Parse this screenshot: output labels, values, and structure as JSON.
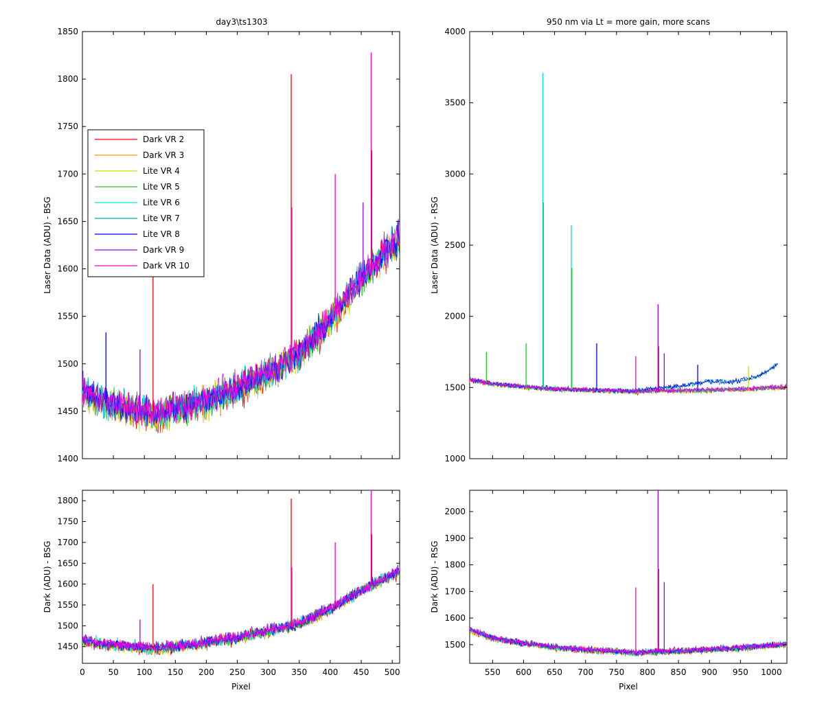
{
  "figure": {
    "background": "#ffffff"
  },
  "series_styles": [
    {
      "name": "Dark VR 2",
      "color": "#ff0000"
    },
    {
      "name": "Dark VR 3",
      "color": "#ff9900"
    },
    {
      "name": "Lite VR 4",
      "color": "#ccdd00"
    },
    {
      "name": "Lite VR 5",
      "color": "#22cc22"
    },
    {
      "name": "Lite VR 6",
      "color": "#00e5e5"
    },
    {
      "name": "Lite VR 7",
      "color": "#00aaaa"
    },
    {
      "name": "Lite VR 8",
      "color": "#0000ff"
    },
    {
      "name": "Dark VR 9",
      "color": "#9900ff"
    },
    {
      "name": "Dark VR 10",
      "color": "#ff00cc"
    }
  ],
  "chart_data": [
    {
      "id": "top-left",
      "type": "line",
      "title": "day3\\ts1303",
      "xlabel": "",
      "ylabel": "Laser Data (ADU) - BSG",
      "xlim": [
        0,
        512
      ],
      "ylim": [
        1400,
        1850
      ],
      "xticks": [
        0,
        50,
        100,
        150,
        200,
        250,
        300,
        350,
        400,
        450,
        500
      ],
      "xtick_labels_visible": false,
      "yticks": [
        1400,
        1450,
        1500,
        1550,
        1600,
        1650,
        1700,
        1750,
        1800,
        1850
      ],
      "legend": {
        "placement": "upper-left",
        "entries": [
          "Dark VR 2",
          "Dark VR 3",
          "Lite VR 4",
          "Lite VR 5",
          "Lite VR 6",
          "Lite VR 7",
          "Lite VR 8",
          "Dark VR 9",
          "Dark VR 10"
        ]
      },
      "baseline": {
        "x": [
          0,
          30,
          60,
          100,
          120,
          150,
          200,
          250,
          300,
          350,
          400,
          450,
          500,
          512
        ],
        "y": [
          1470,
          1460,
          1455,
          1448,
          1447,
          1452,
          1460,
          1475,
          1490,
          1510,
          1545,
          1590,
          1625,
          1630
        ]
      },
      "noise": 14,
      "spikes": [
        {
          "x": 114,
          "y": 1600,
          "series": "Dark VR 2"
        },
        {
          "x": 337,
          "y": 1805,
          "series": "Dark VR 2"
        },
        {
          "x": 338,
          "y": 1665,
          "series": "Dark VR 10"
        },
        {
          "x": 408,
          "y": 1700,
          "series": "Dark VR 10"
        },
        {
          "x": 453,
          "y": 1670,
          "series": "Dark VR 9"
        },
        {
          "x": 466,
          "y": 1828,
          "series": "Dark VR 10"
        },
        {
          "x": 467,
          "y": 1725,
          "series": "Dark VR 2"
        },
        {
          "x": 38,
          "y": 1533,
          "series": "Lite VR 8"
        },
        {
          "x": 93,
          "y": 1515,
          "series": "Dark VR 9"
        }
      ]
    },
    {
      "id": "top-right",
      "type": "line",
      "title": "950 nm via Lt = more gain, more scans",
      "xlabel": "",
      "ylabel": "Laser Data (ADU) - RSG",
      "xlim": [
        513,
        1025
      ],
      "ylim": [
        1000,
        4000
      ],
      "xticks": [
        550,
        600,
        650,
        700,
        750,
        800,
        850,
        900,
        950,
        1000
      ],
      "xtick_labels_visible": false,
      "yticks": [
        1000,
        1500,
        2000,
        2500,
        3000,
        3500,
        4000
      ],
      "baseline": {
        "x": [
          513,
          550,
          600,
          650,
          700,
          750,
          780,
          800,
          850,
          900,
          950,
          1000,
          1025
        ],
        "y": [
          1555,
          1525,
          1505,
          1490,
          1482,
          1478,
          1470,
          1475,
          1478,
          1482,
          1488,
          1498,
          1505
        ]
      },
      "noise": 14,
      "rising_series": {
        "series": [
          "Lite VR 7",
          "Lite VR 8"
        ],
        "x": [
          780,
          820,
          860,
          900,
          930,
          960,
          980,
          1000,
          1010
        ],
        "y": [
          1480,
          1495,
          1515,
          1545,
          1535,
          1555,
          1580,
          1630,
          1670
        ]
      },
      "spikes": [
        {
          "x": 540,
          "y": 1750,
          "series": "Lite VR 5"
        },
        {
          "x": 604,
          "y": 1810,
          "series": "Lite VR 5"
        },
        {
          "x": 631,
          "y": 3710,
          "series": "Lite VR 6"
        },
        {
          "x": 632,
          "y": 2800,
          "series": "Lite VR 5"
        },
        {
          "x": 677,
          "y": 2640,
          "series": "Lite VR 6"
        },
        {
          "x": 678,
          "y": 2340,
          "series": "Lite VR 5"
        },
        {
          "x": 718,
          "y": 1810,
          "series": "Lite VR 8"
        },
        {
          "x": 781,
          "y": 1720,
          "series": "Dark VR 10"
        },
        {
          "x": 817,
          "y": 2085,
          "series": "Dark VR 9"
        },
        {
          "x": 818,
          "y": 1790,
          "series": "Dark VR 2"
        },
        {
          "x": 827,
          "y": 1740,
          "series": "Dark VR 9"
        },
        {
          "x": 881,
          "y": 1660,
          "series": "Lite VR 8"
        },
        {
          "x": 963,
          "y": 1650,
          "series": "Lite VR 4"
        }
      ]
    },
    {
      "id": "bottom-left",
      "type": "line",
      "title": "",
      "xlabel": "Pixel",
      "ylabel": "Dark (ADU) - BSG",
      "xlim": [
        0,
        512
      ],
      "ylim": [
        1410,
        1825
      ],
      "xticks": [
        0,
        50,
        100,
        150,
        200,
        250,
        300,
        350,
        400,
        450,
        500
      ],
      "yticks": [
        1450,
        1500,
        1550,
        1600,
        1650,
        1700,
        1750,
        1800
      ],
      "baseline": {
        "x": [
          0,
          30,
          60,
          100,
          120,
          150,
          200,
          250,
          300,
          350,
          400,
          450,
          500,
          512
        ],
        "y": [
          1465,
          1458,
          1453,
          1447,
          1445,
          1450,
          1458,
          1472,
          1487,
          1505,
          1540,
          1585,
          1622,
          1630
        ]
      },
      "noise": 12,
      "spikes": [
        {
          "x": 114,
          "y": 1600,
          "series": "Dark VR 2"
        },
        {
          "x": 337,
          "y": 1805,
          "series": "Dark VR 2"
        },
        {
          "x": 338,
          "y": 1640,
          "series": "Dark VR 10"
        },
        {
          "x": 408,
          "y": 1700,
          "series": "Dark VR 10"
        },
        {
          "x": 466,
          "y": 1825,
          "series": "Dark VR 10"
        },
        {
          "x": 467,
          "y": 1720,
          "series": "Dark VR 2"
        },
        {
          "x": 93,
          "y": 1515,
          "series": "Dark VR 9"
        }
      ]
    },
    {
      "id": "bottom-right",
      "type": "line",
      "title": "",
      "xlabel": "Pixel",
      "ylabel": "Dark (ADU) - RSG",
      "xlim": [
        513,
        1025
      ],
      "ylim": [
        1430,
        2080
      ],
      "xticks": [
        550,
        600,
        650,
        700,
        750,
        800,
        850,
        900,
        950,
        1000
      ],
      "yticks": [
        1500,
        1600,
        1700,
        1800,
        1900,
        2000
      ],
      "baseline": {
        "x": [
          513,
          550,
          600,
          650,
          700,
          750,
          780,
          800,
          850,
          900,
          950,
          1000,
          1025
        ],
        "y": [
          1555,
          1525,
          1505,
          1490,
          1480,
          1475,
          1468,
          1472,
          1476,
          1482,
          1488,
          1496,
          1502
        ]
      },
      "noise": 10,
      "spikes": [
        {
          "x": 781,
          "y": 1715,
          "series": "Dark VR 10"
        },
        {
          "x": 817,
          "y": 2080,
          "series": "Dark VR 9"
        },
        {
          "x": 818,
          "y": 1785,
          "series": "Dark VR 2"
        },
        {
          "x": 827,
          "y": 1735,
          "series": "Dark VR 9"
        }
      ]
    }
  ]
}
